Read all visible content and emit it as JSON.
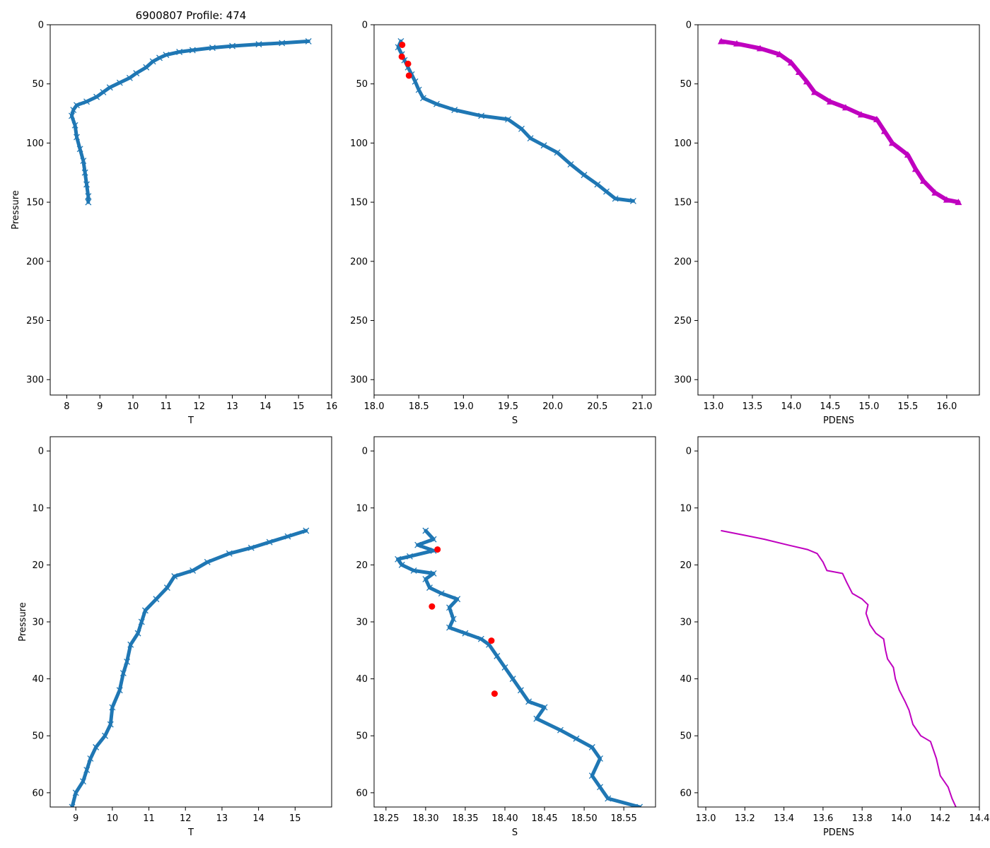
{
  "figure_title": "6900807 Profile: 474",
  "colors": {
    "series": "#1f77b4",
    "flag": "#ff0000",
    "density": "#bf00bf",
    "axis": "#000000"
  },
  "chart_data": [
    {
      "id": "top-temperature",
      "type": "scatter",
      "xlabel": "T",
      "ylabel": "Pressure",
      "xlim": [
        7.5,
        16
      ],
      "ylim": [
        313,
        0
      ],
      "xticks": [
        8,
        9,
        10,
        11,
        12,
        13,
        14,
        15,
        16
      ],
      "yticks": [
        0,
        50,
        100,
        150,
        200,
        250,
        300
      ],
      "series": [
        {
          "name": "T",
          "marker": "x",
          "line": true,
          "color": "#1f77b4",
          "points": [
            [
              15.3,
              14
            ],
            [
              14.5,
              15.5
            ],
            [
              13.8,
              16.5
            ],
            [
              13.0,
              18
            ],
            [
              12.4,
              19.5
            ],
            [
              11.8,
              21.5
            ],
            [
              11.4,
              23
            ],
            [
              11.0,
              25.5
            ],
            [
              10.8,
              28
            ],
            [
              10.6,
              31
            ],
            [
              10.4,
              36
            ],
            [
              10.1,
              41
            ],
            [
              9.9,
              45
            ],
            [
              9.6,
              49
            ],
            [
              9.3,
              53
            ],
            [
              9.1,
              57
            ],
            [
              8.9,
              61
            ],
            [
              8.6,
              65
            ],
            [
              8.3,
              68
            ],
            [
              8.2,
              72
            ],
            [
              8.15,
              77
            ],
            [
              8.25,
              85
            ],
            [
              8.3,
              95
            ],
            [
              8.4,
              105
            ],
            [
              8.5,
              115
            ],
            [
              8.55,
              125
            ],
            [
              8.6,
              135
            ],
            [
              8.65,
              145
            ],
            [
              8.65,
              150
            ]
          ]
        }
      ]
    },
    {
      "id": "top-salinity",
      "type": "scatter",
      "xlabel": "S",
      "ylabel": "",
      "xlim": [
        18.0,
        21.15
      ],
      "ylim": [
        313,
        0
      ],
      "xticks": [
        18.0,
        18.5,
        19.0,
        19.5,
        20.0,
        20.5,
        21.0
      ],
      "yticks": [
        0,
        50,
        100,
        150,
        200,
        250,
        300
      ],
      "series": [
        {
          "name": "S",
          "marker": "x",
          "line": true,
          "color": "#1f77b4",
          "points": [
            [
              18.3,
              14
            ],
            [
              18.27,
              19
            ],
            [
              18.31,
              25
            ],
            [
              18.34,
              30
            ],
            [
              18.38,
              36
            ],
            [
              18.42,
              42
            ],
            [
              18.46,
              48
            ],
            [
              18.5,
              55
            ],
            [
              18.55,
              62
            ],
            [
              18.7,
              67
            ],
            [
              18.9,
              72
            ],
            [
              19.2,
              77
            ],
            [
              19.5,
              80
            ],
            [
              19.65,
              88
            ],
            [
              19.75,
              96
            ],
            [
              19.9,
              102
            ],
            [
              20.05,
              108
            ],
            [
              20.2,
              118
            ],
            [
              20.35,
              127
            ],
            [
              20.5,
              135
            ],
            [
              20.6,
              141
            ],
            [
              20.7,
              147
            ],
            [
              20.9,
              149
            ]
          ]
        },
        {
          "name": "flagged",
          "marker": "o",
          "line": false,
          "color": "#ff0000",
          "points": [
            [
              18.315,
              17
            ],
            [
              18.31,
              27
            ],
            [
              18.38,
              33
            ],
            [
              18.39,
              43
            ]
          ]
        }
      ]
    },
    {
      "id": "top-density",
      "type": "scatter",
      "xlabel": "PDENS",
      "ylabel": "",
      "xlim": [
        12.8,
        16.42
      ],
      "ylim": [
        313,
        0
      ],
      "xticks": [
        13.0,
        13.5,
        14.0,
        14.5,
        15.0,
        15.5,
        16.0
      ],
      "yticks": [
        0,
        50,
        100,
        150,
        200,
        250,
        300
      ],
      "series": [
        {
          "name": "PDENS",
          "marker": "triangle",
          "line": true,
          "color": "#bf00bf",
          "points": [
            [
              13.1,
              14
            ],
            [
              13.3,
              16
            ],
            [
              13.6,
              20
            ],
            [
              13.85,
              25
            ],
            [
              14.0,
              32
            ],
            [
              14.1,
              40
            ],
            [
              14.2,
              48
            ],
            [
              14.3,
              57
            ],
            [
              14.5,
              65
            ],
            [
              14.7,
              70
            ],
            [
              14.9,
              76
            ],
            [
              15.1,
              80
            ],
            [
              15.2,
              90
            ],
            [
              15.3,
              100
            ],
            [
              15.5,
              110
            ],
            [
              15.6,
              122
            ],
            [
              15.7,
              132
            ],
            [
              15.85,
              142
            ],
            [
              16.0,
              148
            ],
            [
              16.15,
              150
            ]
          ]
        }
      ]
    },
    {
      "id": "bottom-temperature",
      "type": "scatter",
      "xlabel": "T",
      "ylabel": "Pressure",
      "xlim": [
        8.3,
        16.0
      ],
      "ylim": [
        62.5,
        -2.5
      ],
      "xticks": [
        9,
        10,
        11,
        12,
        13,
        14,
        15
      ],
      "yticks": [
        0,
        10,
        20,
        30,
        40,
        50,
        60
      ],
      "series": [
        {
          "name": "T",
          "marker": "x",
          "line": true,
          "color": "#1f77b4",
          "points": [
            [
              15.3,
              14
            ],
            [
              14.8,
              15
            ],
            [
              14.3,
              16
            ],
            [
              13.8,
              17
            ],
            [
              13.2,
              18
            ],
            [
              12.6,
              19.5
            ],
            [
              12.2,
              21
            ],
            [
              11.7,
              22
            ],
            [
              11.5,
              24
            ],
            [
              11.2,
              26
            ],
            [
              10.9,
              28
            ],
            [
              10.8,
              30
            ],
            [
              10.7,
              32
            ],
            [
              10.5,
              34
            ],
            [
              10.4,
              37
            ],
            [
              10.3,
              39
            ],
            [
              10.2,
              42
            ],
            [
              10.0,
              45
            ],
            [
              9.95,
              48
            ],
            [
              9.8,
              50
            ],
            [
              9.55,
              52
            ],
            [
              9.4,
              54
            ],
            [
              9.3,
              56
            ],
            [
              9.2,
              58
            ],
            [
              9.0,
              60
            ],
            [
              8.9,
              62.5
            ]
          ]
        }
      ]
    },
    {
      "id": "bottom-salinity",
      "type": "scatter",
      "xlabel": "S",
      "ylabel": "",
      "xlim": [
        18.235,
        18.59
      ],
      "ylim": [
        62.5,
        -2.5
      ],
      "xticks": [
        18.25,
        18.3,
        18.35,
        18.4,
        18.45,
        18.5,
        18.55
      ],
      "yticks": [
        0,
        10,
        20,
        30,
        40,
        50,
        60
      ],
      "series": [
        {
          "name": "S",
          "marker": "x",
          "line": true,
          "color": "#1f77b4",
          "points": [
            [
              18.3,
              14
            ],
            [
              18.31,
              15.5
            ],
            [
              18.29,
              16.5
            ],
            [
              18.31,
              17.5
            ],
            [
              18.28,
              18.5
            ],
            [
              18.265,
              19
            ],
            [
              18.27,
              20
            ],
            [
              18.285,
              21
            ],
            [
              18.31,
              21.5
            ],
            [
              18.3,
              22.5
            ],
            [
              18.305,
              24
            ],
            [
              18.32,
              25
            ],
            [
              18.34,
              26
            ],
            [
              18.33,
              27.5
            ],
            [
              18.335,
              29.5
            ],
            [
              18.33,
              31
            ],
            [
              18.35,
              32
            ],
            [
              18.37,
              33
            ],
            [
              18.38,
              34
            ],
            [
              18.39,
              36
            ],
            [
              18.4,
              38
            ],
            [
              18.41,
              40
            ],
            [
              18.42,
              42
            ],
            [
              18.43,
              44
            ],
            [
              18.45,
              45
            ],
            [
              18.44,
              47
            ],
            [
              18.47,
              49
            ],
            [
              18.49,
              50.5
            ],
            [
              18.51,
              52
            ],
            [
              18.52,
              54
            ],
            [
              18.51,
              57
            ],
            [
              18.52,
              59
            ],
            [
              18.53,
              61
            ],
            [
              18.57,
              62.5
            ]
          ]
        },
        {
          "name": "flagged",
          "marker": "o",
          "line": false,
          "color": "#ff0000",
          "points": [
            [
              18.315,
              17.3
            ],
            [
              18.308,
              27.3
            ],
            [
              18.383,
              33.3
            ],
            [
              18.387,
              42.6
            ]
          ]
        }
      ]
    },
    {
      "id": "bottom-density",
      "type": "line",
      "xlabel": "PDENS",
      "ylabel": "",
      "xlim": [
        12.96,
        14.4
      ],
      "ylim": [
        62.5,
        -2.5
      ],
      "xticks": [
        13.0,
        13.2,
        13.4,
        13.6,
        13.8,
        14.0,
        14.2,
        14.4
      ],
      "yticks": [
        0,
        10,
        20,
        30,
        40,
        50,
        60
      ],
      "series": [
        {
          "name": "PDENS",
          "marker": "none",
          "line": true,
          "color": "#bf00bf",
          "points": [
            [
              13.08,
              14
            ],
            [
              13.2,
              14.8
            ],
            [
              13.3,
              15.5
            ],
            [
              13.42,
              16.5
            ],
            [
              13.52,
              17.3
            ],
            [
              13.57,
              18
            ],
            [
              13.6,
              19.5
            ],
            [
              13.62,
              21
            ],
            [
              13.7,
              21.5
            ],
            [
              13.72,
              23
            ],
            [
              13.75,
              25
            ],
            [
              13.8,
              26
            ],
            [
              13.83,
              27
            ],
            [
              13.82,
              28.5
            ],
            [
              13.84,
              30.5
            ],
            [
              13.87,
              32
            ],
            [
              13.91,
              33
            ],
            [
              13.92,
              35
            ],
            [
              13.93,
              36.5
            ],
            [
              13.96,
              38
            ],
            [
              13.97,
              40
            ],
            [
              13.99,
              42
            ],
            [
              14.02,
              44
            ],
            [
              14.04,
              45.5
            ],
            [
              14.06,
              48
            ],
            [
              14.1,
              50
            ],
            [
              14.15,
              51
            ],
            [
              14.18,
              54
            ],
            [
              14.2,
              57
            ],
            [
              14.24,
              59
            ],
            [
              14.26,
              61
            ],
            [
              14.28,
              62.5
            ]
          ]
        }
      ]
    }
  ]
}
